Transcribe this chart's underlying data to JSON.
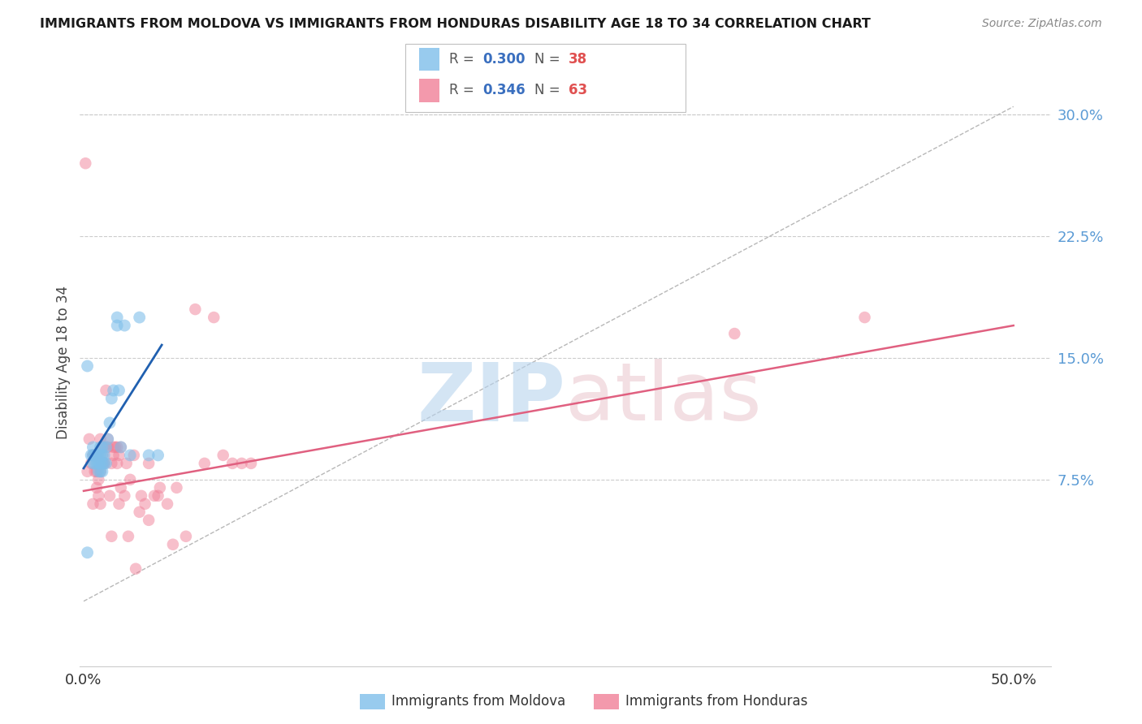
{
  "title": "IMMIGRANTS FROM MOLDOVA VS IMMIGRANTS FROM HONDURAS DISABILITY AGE 18 TO 34 CORRELATION CHART",
  "source": "Source: ZipAtlas.com",
  "ylabel": "Disability Age 18 to 34",
  "xlim": [
    -0.002,
    0.52
  ],
  "ylim": [
    -0.04,
    0.335
  ],
  "xtick_positions": [
    0.0,
    0.1,
    0.2,
    0.3,
    0.4,
    0.5
  ],
  "xtick_labels": [
    "0.0%",
    "",
    "",
    "",
    "",
    "50.0%"
  ],
  "yticks_right": [
    0.075,
    0.15,
    0.225,
    0.3
  ],
  "ytick_labels_right": [
    "7.5%",
    "15.0%",
    "22.5%",
    "30.0%"
  ],
  "grid_yticks": [
    0.075,
    0.15,
    0.225,
    0.3
  ],
  "moldova_color": "#7fbfea",
  "moldova_line_color": "#2060b0",
  "honduras_color": "#f08098",
  "honduras_line_color": "#e06080",
  "moldova_R": "0.300",
  "moldova_N": "38",
  "honduras_R": "0.346",
  "honduras_N": "63",
  "background_color": "#ffffff",
  "moldova_x": [
    0.002,
    0.004,
    0.005,
    0.005,
    0.005,
    0.006,
    0.006,
    0.007,
    0.007,
    0.008,
    0.008,
    0.008,
    0.009,
    0.009,
    0.009,
    0.009,
    0.01,
    0.01,
    0.01,
    0.01,
    0.011,
    0.011,
    0.012,
    0.012,
    0.013,
    0.014,
    0.015,
    0.016,
    0.018,
    0.018,
    0.019,
    0.02,
    0.022,
    0.025,
    0.03,
    0.035,
    0.04,
    0.002
  ],
  "moldova_y": [
    0.145,
    0.09,
    0.085,
    0.09,
    0.095,
    0.085,
    0.09,
    0.085,
    0.09,
    0.08,
    0.085,
    0.09,
    0.08,
    0.085,
    0.09,
    0.095,
    0.08,
    0.085,
    0.09,
    0.095,
    0.085,
    0.09,
    0.085,
    0.095,
    0.1,
    0.11,
    0.125,
    0.13,
    0.17,
    0.175,
    0.13,
    0.095,
    0.17,
    0.09,
    0.175,
    0.09,
    0.09,
    0.03
  ],
  "moldova_line_x": [
    0.0,
    0.042
  ],
  "moldova_line_y": [
    0.082,
    0.158
  ],
  "honduras_x": [
    0.001,
    0.002,
    0.003,
    0.004,
    0.005,
    0.005,
    0.006,
    0.006,
    0.007,
    0.007,
    0.007,
    0.008,
    0.008,
    0.009,
    0.009,
    0.009,
    0.01,
    0.01,
    0.01,
    0.011,
    0.011,
    0.012,
    0.013,
    0.013,
    0.014,
    0.015,
    0.015,
    0.016,
    0.016,
    0.017,
    0.018,
    0.018,
    0.019,
    0.019,
    0.02,
    0.02,
    0.022,
    0.023,
    0.024,
    0.025,
    0.027,
    0.028,
    0.03,
    0.031,
    0.033,
    0.035,
    0.035,
    0.038,
    0.04,
    0.041,
    0.045,
    0.048,
    0.05,
    0.055,
    0.06,
    0.065,
    0.07,
    0.075,
    0.08,
    0.085,
    0.09,
    0.35,
    0.42
  ],
  "honduras_y": [
    0.27,
    0.08,
    0.1,
    0.085,
    0.06,
    0.09,
    0.08,
    0.09,
    0.07,
    0.08,
    0.09,
    0.065,
    0.075,
    0.06,
    0.08,
    0.1,
    0.085,
    0.09,
    0.095,
    0.085,
    0.095,
    0.13,
    0.095,
    0.1,
    0.065,
    0.04,
    0.085,
    0.09,
    0.095,
    0.095,
    0.085,
    0.095,
    0.06,
    0.09,
    0.07,
    0.095,
    0.065,
    0.085,
    0.04,
    0.075,
    0.09,
    0.02,
    0.055,
    0.065,
    0.06,
    0.05,
    0.085,
    0.065,
    0.065,
    0.07,
    0.06,
    0.035,
    0.07,
    0.04,
    0.18,
    0.085,
    0.175,
    0.09,
    0.085,
    0.085,
    0.085,
    0.165,
    0.175
  ],
  "honduras_line_x": [
    0.0,
    0.5
  ],
  "honduras_line_y": [
    0.068,
    0.17
  ],
  "dashed_line_x": [
    0.0,
    0.5
  ],
  "dashed_line_y": [
    0.0,
    0.305
  ]
}
